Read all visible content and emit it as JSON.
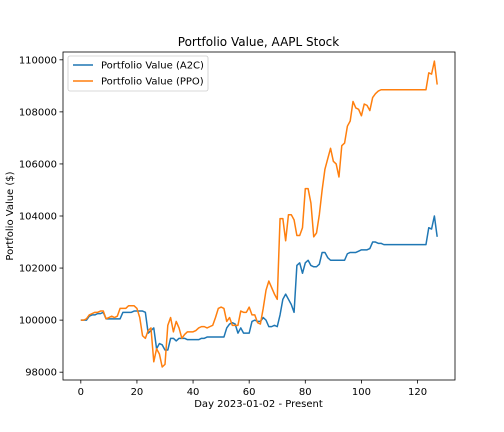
{
  "chart_data": {
    "type": "line",
    "title": "Portfolio Value, AAPL Stock",
    "xlabel": "Day 2023-01-02 - Present",
    "ylabel": "Portfolio Value ($)",
    "xlim": [
      -6.35,
      133.35
    ],
    "ylim": [
      97700,
      110300
    ],
    "xticks": [
      0,
      20,
      40,
      60,
      80,
      100,
      120
    ],
    "yticks": [
      98000,
      100000,
      102000,
      104000,
      106000,
      108000,
      110000
    ],
    "xtick_labels": [
      "0",
      "20",
      "40",
      "60",
      "80",
      "100",
      "120"
    ],
    "ytick_labels": [
      "98000",
      "100000",
      "102000",
      "104000",
      "106000",
      "108000",
      "110000"
    ],
    "legend_position": "top-left",
    "grid": false,
    "series": [
      {
        "name": "Portfolio Value (A2C)",
        "color": "#1f77b4",
        "x": [
          0,
          1,
          2,
          3,
          4,
          5,
          6,
          7,
          8,
          9,
          10,
          11,
          12,
          13,
          14,
          15,
          16,
          17,
          18,
          19,
          20,
          21,
          22,
          23,
          24,
          25,
          26,
          27,
          28,
          29,
          30,
          31,
          32,
          33,
          34,
          35,
          36,
          37,
          38,
          39,
          40,
          41,
          42,
          43,
          44,
          45,
          46,
          47,
          48,
          49,
          50,
          51,
          52,
          53,
          54,
          55,
          56,
          57,
          58,
          59,
          60,
          61,
          62,
          63,
          64,
          65,
          66,
          67,
          68,
          69,
          70,
          71,
          72,
          73,
          74,
          75,
          76,
          77,
          78,
          79,
          80,
          81,
          82,
          83,
          84,
          85,
          86,
          87,
          88,
          89,
          90,
          91,
          92,
          93,
          94,
          95,
          96,
          97,
          98,
          99,
          100,
          101,
          102,
          103,
          104,
          105,
          106,
          107,
          108,
          109,
          110,
          111,
          112,
          113,
          114,
          115,
          116,
          117,
          118,
          119,
          120,
          121,
          122,
          123,
          124,
          125,
          126,
          127
        ],
        "values": [
          100000,
          100000,
          100000,
          100150,
          100200,
          100200,
          100250,
          100250,
          100300,
          100050,
          100050,
          100050,
          100050,
          100050,
          100050,
          100300,
          100300,
          100300,
          100300,
          100350,
          100350,
          100350,
          100350,
          100300,
          99500,
          99600,
          99700,
          98900,
          99100,
          99050,
          98850,
          98850,
          99300,
          99300,
          99200,
          99300,
          99300,
          99300,
          99250,
          99250,
          99250,
          99250,
          99250,
          99300,
          99300,
          99350,
          99350,
          99350,
          99350,
          99350,
          99350,
          99350,
          99700,
          99850,
          99900,
          99850,
          99500,
          99700,
          99500,
          99500,
          99500,
          99950,
          100000,
          99950,
          99950,
          100100,
          100000,
          99750,
          99750,
          99800,
          99750,
          100200,
          100800,
          101000,
          100800,
          100600,
          100300,
          102100,
          102200,
          101800,
          102200,
          102300,
          102100,
          102050,
          102050,
          102150,
          102600,
          102600,
          102400,
          102300,
          102300,
          102300,
          102300,
          102300,
          102300,
          102550,
          102600,
          102600,
          102600,
          102650,
          102700,
          102700,
          102700,
          102750,
          103000,
          103000,
          102950,
          102950,
          102900,
          102900,
          102900,
          102900,
          102900,
          102900,
          102900,
          102900,
          102900,
          102900,
          102900,
          102900,
          102900,
          102900,
          102900,
          102900,
          103550,
          103500,
          104000,
          103200
        ]
      },
      {
        "name": "Portfolio Value (PPO)",
        "color": "#ff7f0e",
        "x": [
          0,
          1,
          2,
          3,
          4,
          5,
          6,
          7,
          8,
          9,
          10,
          11,
          12,
          13,
          14,
          15,
          16,
          17,
          18,
          19,
          20,
          21,
          22,
          23,
          24,
          25,
          26,
          27,
          28,
          29,
          30,
          31,
          32,
          33,
          34,
          35,
          36,
          37,
          38,
          39,
          40,
          41,
          42,
          43,
          44,
          45,
          46,
          47,
          48,
          49,
          50,
          51,
          52,
          53,
          54,
          55,
          56,
          57,
          58,
          59,
          60,
          61,
          62,
          63,
          64,
          65,
          66,
          67,
          68,
          69,
          70,
          71,
          72,
          73,
          74,
          75,
          76,
          77,
          78,
          79,
          80,
          81,
          82,
          83,
          84,
          85,
          86,
          87,
          88,
          89,
          90,
          91,
          92,
          93,
          94,
          95,
          96,
          97,
          98,
          99,
          100,
          101,
          102,
          103,
          104,
          105,
          106,
          107,
          108,
          109,
          110,
          111,
          112,
          113,
          114,
          115,
          116,
          117,
          118,
          119,
          120,
          121,
          122,
          123,
          124,
          125,
          126,
          127
        ],
        "values": [
          100000,
          100000,
          100050,
          100200,
          100250,
          100300,
          100300,
          100350,
          100350,
          100050,
          100100,
          100150,
          100100,
          100150,
          100450,
          100450,
          100450,
          100550,
          100550,
          100550,
          100450,
          100100,
          99400,
          99300,
          99600,
          99700,
          98400,
          98900,
          98700,
          98200,
          98300,
          99800,
          100100,
          99550,
          99950,
          99700,
          99300,
          99450,
          99550,
          99550,
          99550,
          99600,
          99700,
          99750,
          99750,
          99700,
          99750,
          99800,
          100100,
          100450,
          100500,
          100450,
          99950,
          100100,
          99800,
          99800,
          99800,
          100350,
          100300,
          100300,
          100500,
          100200,
          100200,
          99900,
          99850,
          100450,
          101150,
          101500,
          101250,
          101000,
          100800,
          103900,
          103900,
          103050,
          104050,
          104050,
          103850,
          103250,
          103250,
          103550,
          105050,
          105050,
          104500,
          103200,
          103350,
          104050,
          105000,
          105800,
          106200,
          106600,
          106100,
          106000,
          105500,
          106700,
          106800,
          107450,
          107650,
          108400,
          108150,
          108100,
          107850,
          108300,
          108250,
          108050,
          108550,
          108700,
          108800,
          108850,
          108850,
          108850,
          108850,
          108850,
          108850,
          108850,
          108850,
          108850,
          108850,
          108850,
          108850,
          108850,
          108850,
          108850,
          108850,
          108850,
          109500,
          109450,
          109950,
          109050
        ]
      }
    ]
  }
}
